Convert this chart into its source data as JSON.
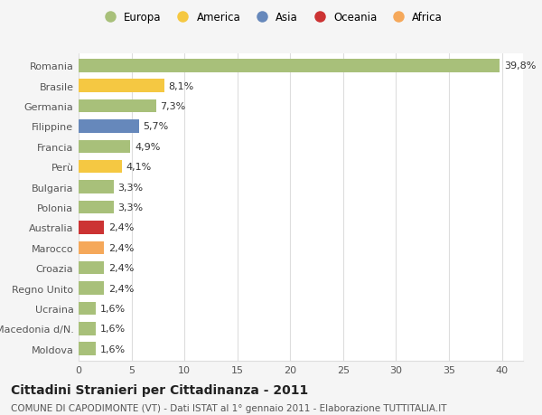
{
  "categories": [
    "Romania",
    "Brasile",
    "Germania",
    "Filippine",
    "Francia",
    "Perù",
    "Bulgaria",
    "Polonia",
    "Australia",
    "Marocco",
    "Croazia",
    "Regno Unito",
    "Ucraina",
    "Macedonia d/N.",
    "Moldova"
  ],
  "values": [
    39.8,
    8.1,
    7.3,
    5.7,
    4.9,
    4.1,
    3.3,
    3.3,
    2.4,
    2.4,
    2.4,
    2.4,
    1.6,
    1.6,
    1.6
  ],
  "labels": [
    "39,8%",
    "8,1%",
    "7,3%",
    "5,7%",
    "4,9%",
    "4,1%",
    "3,3%",
    "3,3%",
    "2,4%",
    "2,4%",
    "2,4%",
    "2,4%",
    "1,6%",
    "1,6%",
    "1,6%"
  ],
  "colors": [
    "#a8c07a",
    "#f5c842",
    "#a8c07a",
    "#6688bb",
    "#a8c07a",
    "#f5c842",
    "#a8c07a",
    "#a8c07a",
    "#cc3333",
    "#f5a85a",
    "#a8c07a",
    "#a8c07a",
    "#a8c07a",
    "#a8c07a",
    "#a8c07a"
  ],
  "legend": [
    {
      "label": "Europa",
      "color": "#a8c07a"
    },
    {
      "label": "America",
      "color": "#f5c842"
    },
    {
      "label": "Asia",
      "color": "#6688bb"
    },
    {
      "label": "Oceania",
      "color": "#cc3333"
    },
    {
      "label": "Africa",
      "color": "#f5a85a"
    }
  ],
  "xlim": [
    0,
    42
  ],
  "xticks": [
    0,
    5,
    10,
    15,
    20,
    25,
    30,
    35,
    40
  ],
  "title": "Cittadini Stranieri per Cittadinanza - 2011",
  "subtitle": "COMUNE DI CAPODIMONTE (VT) - Dati ISTAT al 1° gennaio 2011 - Elaborazione TUTTITALIA.IT",
  "background_color": "#f5f5f5",
  "bar_background": "#ffffff",
  "grid_color": "#dddddd",
  "label_color": "#555555",
  "value_color": "#333333",
  "title_fontsize": 10,
  "subtitle_fontsize": 7.5,
  "tick_fontsize": 8,
  "bar_height": 0.65
}
